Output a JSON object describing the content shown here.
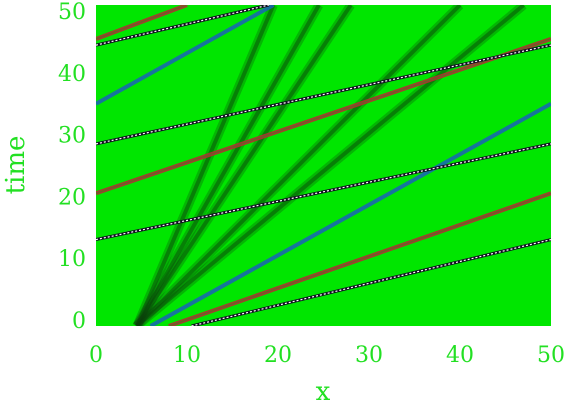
{
  "chart_data": {
    "type": "heatmap",
    "xlabel": "x",
    "ylabel": "time",
    "xlim": [
      0,
      50
    ],
    "ylim": [
      -1,
      51
    ],
    "xticks": [
      0,
      10,
      20,
      30,
      40,
      50
    ],
    "yticks": [
      0,
      10,
      20,
      30,
      40,
      50
    ],
    "colors": {
      "background": "#00e600",
      "text": "#22e022",
      "dark_soliton": "#0b3d0b",
      "blue_line": "#1a60b8",
      "red_line": "#b03030",
      "dashed_line": "#101020"
    },
    "dark_rays": [
      {
        "x0": 4.5,
        "t0": -1,
        "x1": 19.5,
        "t1": 51
      },
      {
        "x0": 4.5,
        "t0": -1,
        "x1": 24.5,
        "t1": 51
      },
      {
        "x0": 4.5,
        "t0": -1,
        "x1": 28.0,
        "t1": 51
      },
      {
        "x0": 4.5,
        "t0": -1,
        "x1": 40.0,
        "t1": 51
      },
      {
        "x0": 4.5,
        "t0": -1,
        "x1": 47.0,
        "t1": 51
      }
    ],
    "blue_lines": [
      {
        "x0": 6.0,
        "t0": -1,
        "x1": 50.0,
        "t1": 35.0
      },
      {
        "x0": 0.0,
        "t0": 35.0,
        "x1": 19.5,
        "t1": 51
      }
    ],
    "red_lines": [
      {
        "x0": 8.0,
        "t0": -1,
        "x1": 50.0,
        "t1": 20.5
      },
      {
        "x0": 0.0,
        "t0": 20.5,
        "x1": 50.0,
        "t1": 45.5
      },
      {
        "x0": 0.0,
        "t0": 45.5,
        "x1": 10.0,
        "t1": 51
      }
    ],
    "dashed_lines": [
      {
        "x0": 10.5,
        "t0": -1,
        "x1": 50.0,
        "t1": 13.0
      },
      {
        "x0": 0.0,
        "t0": 13.0,
        "x1": 50.0,
        "t1": 28.5
      },
      {
        "x0": 0.0,
        "t0": 28.5,
        "x1": 50.0,
        "t1": 44.5
      },
      {
        "x0": 0.0,
        "t0": 44.5,
        "x1": 19.0,
        "t1": 51
      }
    ]
  }
}
